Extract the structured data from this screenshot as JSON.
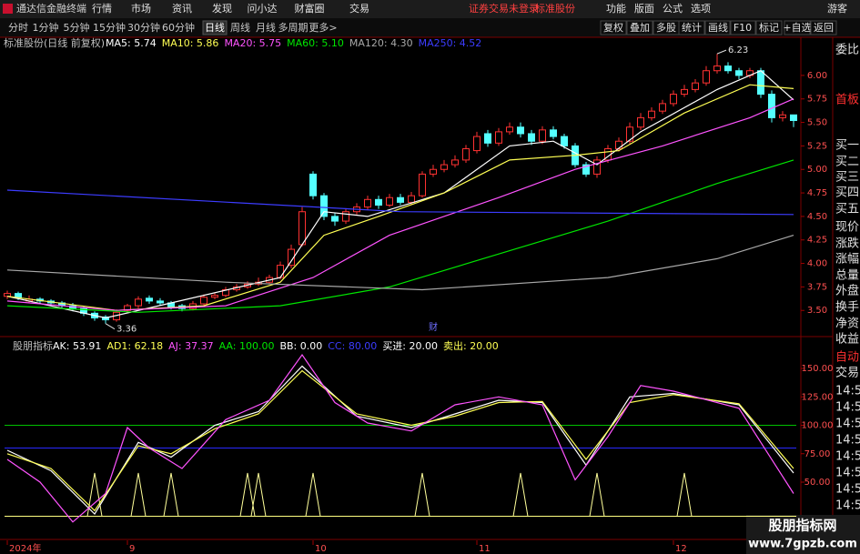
{
  "menu": {
    "app": "通达信金融终端",
    "items": [
      "行情",
      "市场",
      "资讯",
      "发现",
      "问小达",
      "财富圈",
      "交易"
    ],
    "notice": [
      "证券交易未登录",
      "标准股份"
    ],
    "right": [
      "功能",
      "版面",
      "公式",
      "选项"
    ],
    "user": "游客"
  },
  "toolbar": {
    "periods": [
      "分时",
      "1分钟",
      "5分钟",
      "15分钟",
      "30分钟",
      "60分钟",
      "日线",
      "周线",
      "月线",
      "多周期",
      "更多>"
    ],
    "active": 6,
    "tools": [
      "复权",
      "叠加",
      "多股",
      "统计",
      "画线",
      "F10",
      "标记",
      "+自选",
      "返回"
    ]
  },
  "side_panel": {
    "items": [
      "委比",
      "首板",
      "买一",
      "买二",
      "买三",
      "买四",
      "买五",
      "现价",
      "涨跌",
      "涨幅",
      "总量",
      "外盘",
      "换手",
      "净资",
      "收益",
      "自动",
      "交易",
      "14:56",
      "14:56",
      "14:56",
      "14:56",
      "14:56",
      "14:56",
      "14:56",
      "14:56"
    ],
    "red": [
      1,
      15
    ]
  },
  "watermark": {
    "title": "股朋指标网",
    "url": "www.7gpzb.com"
  },
  "chart_data": [
    {
      "type": "candlestick",
      "title": "标准股份(日线 前复权)",
      "open": [
        3.65,
        3.68,
        3.6,
        3.62,
        3.6,
        3.58,
        3.55,
        3.52,
        3.47,
        3.43,
        3.4,
        3.5,
        3.55,
        3.63,
        3.6,
        3.58,
        3.55,
        3.52,
        3.57,
        3.64,
        3.66,
        3.72,
        3.75,
        3.78,
        3.8,
        3.85,
        3.98,
        4.2,
        4.95,
        4.72,
        4.5,
        4.45,
        4.55,
        4.6,
        4.68,
        4.62,
        4.7,
        4.65,
        4.72,
        4.95,
        5.0,
        5.05,
        5.1,
        5.2,
        5.38,
        5.28,
        5.4,
        5.45,
        5.38,
        5.3,
        5.42,
        5.35,
        5.25,
        5.05,
        4.95,
        5.1,
        5.22,
        5.3,
        5.45,
        5.55,
        5.62,
        5.7,
        5.8,
        5.85,
        5.92,
        6.05,
        6.1,
        6.05,
        6.0,
        6.05,
        5.8,
        5.55,
        5.58
      ],
      "high": [
        3.71,
        3.7,
        3.66,
        3.64,
        3.62,
        3.6,
        3.58,
        3.54,
        3.49,
        3.45,
        3.51,
        3.57,
        3.65,
        3.66,
        3.63,
        3.6,
        3.57,
        3.6,
        3.67,
        3.69,
        3.75,
        3.78,
        3.81,
        3.85,
        3.88,
        4.02,
        4.2,
        4.6,
        4.98,
        4.75,
        4.54,
        4.58,
        4.64,
        4.72,
        4.72,
        4.74,
        4.74,
        4.76,
        4.98,
        5.05,
        5.1,
        5.15,
        5.26,
        5.4,
        5.42,
        5.44,
        5.5,
        5.5,
        5.42,
        5.46,
        5.46,
        5.38,
        5.28,
        5.08,
        5.14,
        5.26,
        5.34,
        5.5,
        5.6,
        5.66,
        5.74,
        5.84,
        5.9,
        5.96,
        6.1,
        6.23,
        6.14,
        6.08,
        6.08,
        6.08,
        5.84,
        5.62,
        5.56
      ],
      "low": [
        3.62,
        3.61,
        3.58,
        3.57,
        3.55,
        3.52,
        3.49,
        3.44,
        3.39,
        3.36,
        3.38,
        3.47,
        3.52,
        3.57,
        3.55,
        3.51,
        3.49,
        3.5,
        3.55,
        3.62,
        3.64,
        3.7,
        3.73,
        3.76,
        3.78,
        3.83,
        3.95,
        4.18,
        4.68,
        4.46,
        4.4,
        4.42,
        4.52,
        4.57,
        4.58,
        4.6,
        4.62,
        4.62,
        4.7,
        4.92,
        4.97,
        5.02,
        5.07,
        5.17,
        5.24,
        5.25,
        5.37,
        5.34,
        5.26,
        5.27,
        5.32,
        5.22,
        5.02,
        4.92,
        4.91,
        5.07,
        5.19,
        5.27,
        5.42,
        5.52,
        5.59,
        5.67,
        5.77,
        5.82,
        5.89,
        6.02,
        6.02,
        5.96,
        5.97,
        5.76,
        5.5,
        5.51,
        5.45
      ],
      "close": [
        3.68,
        3.64,
        3.62,
        3.6,
        3.58,
        3.55,
        3.52,
        3.47,
        3.42,
        3.4,
        3.48,
        3.55,
        3.62,
        3.6,
        3.58,
        3.54,
        3.52,
        3.57,
        3.64,
        3.66,
        3.72,
        3.75,
        3.78,
        3.8,
        3.85,
        3.98,
        4.15,
        4.55,
        4.72,
        4.5,
        4.45,
        4.55,
        4.6,
        4.68,
        4.62,
        4.7,
        4.65,
        4.72,
        4.95,
        5.0,
        5.05,
        5.1,
        5.22,
        5.35,
        5.28,
        5.4,
        5.45,
        5.38,
        5.3,
        5.42,
        5.35,
        5.25,
        5.05,
        4.95,
        5.1,
        5.22,
        5.3,
        5.45,
        5.55,
        5.62,
        5.7,
        5.8,
        5.85,
        5.92,
        6.05,
        6.1,
        6.05,
        6.0,
        6.05,
        5.8,
        5.55,
        5.58,
        5.52
      ],
      "up_color": "#ff3232",
      "down_color": "#54ffff",
      "lines": [
        {
          "legend": "MA5: 5.74",
          "color": "#ffffff",
          "x": [
            0,
            9,
            15,
            25,
            29,
            33,
            40,
            46,
            50,
            54,
            58,
            65,
            69,
            72
          ],
          "values": [
            3.65,
            3.42,
            3.58,
            3.85,
            4.55,
            4.5,
            4.75,
            5.25,
            5.3,
            5.05,
            5.4,
            5.85,
            6.05,
            5.74
          ]
        },
        {
          "legend": "MA10: 5.86",
          "color": "#ffff54",
          "x": [
            0,
            10,
            18,
            25,
            29,
            34,
            40,
            46,
            52,
            56,
            62,
            68,
            72
          ],
          "values": [
            3.65,
            3.5,
            3.55,
            3.8,
            4.3,
            4.5,
            4.75,
            5.1,
            5.15,
            5.2,
            5.6,
            5.9,
            5.86
          ]
        },
        {
          "legend": "MA20: 5.75",
          "color": "#ff54ff",
          "x": [
            0,
            10,
            20,
            28,
            35,
            45,
            52,
            60,
            68,
            72
          ],
          "values": [
            3.6,
            3.5,
            3.55,
            3.85,
            4.3,
            4.7,
            5.0,
            5.25,
            5.55,
            5.75
          ]
        },
        {
          "legend": "MA60: 5.10",
          "color": "#00e600",
          "x": [
            0,
            12,
            25,
            35,
            45,
            55,
            65,
            72
          ],
          "values": [
            3.55,
            3.48,
            3.55,
            3.75,
            4.1,
            4.45,
            4.85,
            5.1
          ]
        },
        {
          "legend": "MA120: 4.30",
          "color": "#a8a8a8",
          "x": [
            0,
            20,
            38,
            55,
            65,
            72
          ],
          "values": [
            3.93,
            3.8,
            3.72,
            3.85,
            4.05,
            4.3
          ]
        },
        {
          "legend": "MA250: 4.52",
          "color": "#3c3cff",
          "x": [
            0,
            36,
            72
          ],
          "values": [
            4.78,
            4.55,
            4.52
          ]
        }
      ],
      "annotations": [
        {
          "label": "6.23",
          "index": 65,
          "value": 6.23
        },
        {
          "label": "3.36",
          "index": 9,
          "value": 3.36
        }
      ],
      "marker": {
        "label": "财",
        "index": 39
      },
      "x_labels": [
        {
          "index": 0,
          "label": "2024年"
        },
        {
          "index": 11,
          "label": "9"
        },
        {
          "index": 28,
          "label": "10"
        },
        {
          "index": 43,
          "label": "11"
        },
        {
          "index": 61,
          "label": "12"
        }
      ],
      "ylim": [
        3.27,
        6.27
      ],
      "yticks": [
        {
          "value": 3.5,
          "label": "3.50"
        },
        {
          "value": 3.75,
          "label": "3.75"
        },
        {
          "value": 4,
          "label": "4.00"
        },
        {
          "value": 4.25,
          "label": "4.25"
        },
        {
          "value": 4.5,
          "label": "4.50"
        },
        {
          "value": 4.75,
          "label": "4.75"
        },
        {
          "value": 5,
          "label": "5.00"
        },
        {
          "value": 5.25,
          "label": "5.25"
        },
        {
          "value": 5.5,
          "label": "5.50"
        },
        {
          "value": 5.75,
          "label": "5.75"
        },
        {
          "value": 6,
          "label": "6.00"
        }
      ]
    },
    {
      "type": "indicator",
      "title": "股朋指标",
      "legend": [
        {
          "label": "AK: 53.91",
          "color": "#ffffff"
        },
        {
          "label": "AD1: 62.18",
          "color": "#ffff54"
        },
        {
          "label": "AJ: 37.37",
          "color": "#ff54ff"
        },
        {
          "label": "AA: 100.00",
          "color": "#00e600"
        },
        {
          "label": "BB: 0.00",
          "color": "#ffffff"
        },
        {
          "label": "CC: 80.00",
          "color": "#3c3cff"
        },
        {
          "label": "买进: 20.00",
          "color": "#ffffff"
        },
        {
          "label": "卖出: 20.00",
          "color": "#ffff54"
        }
      ],
      "series": [
        {
          "color": "#ffffff",
          "x": [
            0,
            4,
            8,
            12,
            15,
            19,
            23,
            27,
            32,
            37,
            41,
            45,
            49,
            53,
            57,
            61,
            67,
            72
          ],
          "values": [
            78,
            60,
            22,
            85,
            72,
            100,
            112,
            152,
            108,
            98,
            110,
            122,
            120,
            65,
            125,
            128,
            118,
            58
          ]
        },
        {
          "color": "#ffff54",
          "x": [
            0,
            4,
            8,
            12,
            15,
            19,
            23,
            27,
            32,
            37,
            41,
            45,
            49,
            53,
            57,
            61,
            67,
            72
          ],
          "values": [
            75,
            62,
            25,
            82,
            75,
            97,
            110,
            148,
            110,
            100,
            108,
            120,
            121,
            70,
            120,
            127,
            119,
            62
          ]
        },
        {
          "color": "#ff54ff",
          "x": [
            0,
            3,
            6,
            9,
            11,
            13,
            16,
            20,
            24,
            27,
            30,
            33,
            37,
            41,
            45,
            49,
            52,
            55,
            58,
            61,
            67,
            72
          ],
          "values": [
            70,
            50,
            15,
            40,
            98,
            80,
            62,
            105,
            122,
            162,
            120,
            102,
            95,
            118,
            125,
            118,
            52,
            90,
            135,
            130,
            115,
            40
          ]
        }
      ],
      "hlines": [
        {
          "value": 100,
          "color": "#00c000"
        },
        {
          "value": 80,
          "color": "#2828ff"
        },
        {
          "value": 20,
          "color": "#ffff80"
        }
      ],
      "signals": {
        "color": "#ffff9a",
        "base": 20,
        "x": [
          8,
          12,
          15,
          22,
          23,
          28,
          38,
          47,
          54,
          62
        ],
        "values": [
          58,
          58,
          58,
          58,
          58,
          58,
          58,
          58,
          58,
          58
        ]
      },
      "ylim": [
        2,
        162
      ],
      "yticks": [
        {
          "value": 50,
          "label": "50.00"
        },
        {
          "value": 75,
          "label": "75.00"
        },
        {
          "value": 100,
          "label": "100.00"
        },
        {
          "value": 125,
          "label": "125.00"
        },
        {
          "value": 150,
          "label": "150.00"
        }
      ]
    }
  ]
}
